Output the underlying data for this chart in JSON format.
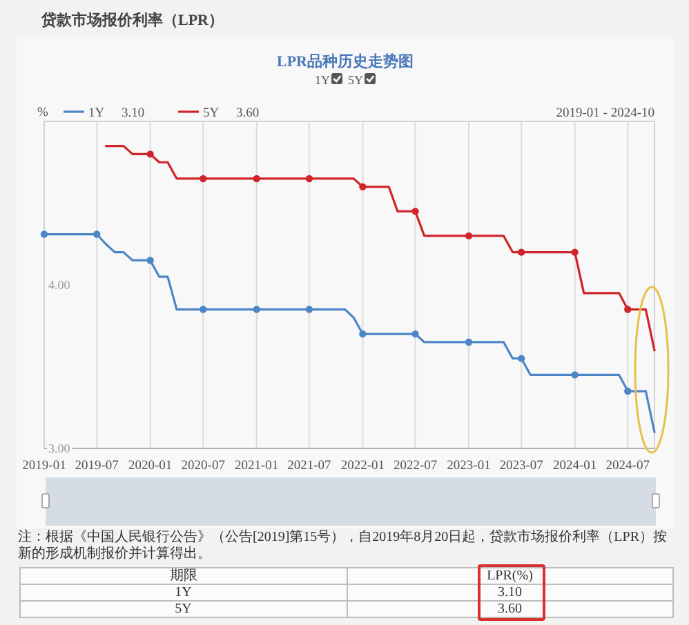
{
  "chart_data": {
    "type": "line",
    "title": "贷款市场报价利率（LPR）",
    "subtitle": "LPR品种历史走势图",
    "ylabel": "%",
    "x": [
      "2019-01",
      "2019-02",
      "2019-03",
      "2019-04",
      "2019-05",
      "2019-06",
      "2019-07",
      "2019-08",
      "2019-09",
      "2019-10",
      "2019-11",
      "2019-12",
      "2020-01",
      "2020-02",
      "2020-03",
      "2020-04",
      "2020-05",
      "2020-06",
      "2020-07",
      "2020-08",
      "2020-09",
      "2020-10",
      "2020-11",
      "2020-12",
      "2021-01",
      "2021-02",
      "2021-03",
      "2021-04",
      "2021-05",
      "2021-06",
      "2021-07",
      "2021-08",
      "2021-09",
      "2021-10",
      "2021-11",
      "2021-12",
      "2022-01",
      "2022-02",
      "2022-03",
      "2022-04",
      "2022-05",
      "2022-06",
      "2022-07",
      "2022-08",
      "2022-09",
      "2022-10",
      "2022-11",
      "2022-12",
      "2023-01",
      "2023-02",
      "2023-03",
      "2023-04",
      "2023-05",
      "2023-06",
      "2023-07",
      "2023-08",
      "2023-09",
      "2023-10",
      "2023-11",
      "2023-12",
      "2024-01",
      "2024-02",
      "2024-03",
      "2024-04",
      "2024-05",
      "2024-06",
      "2024-07",
      "2024-08",
      "2024-09",
      "2024-10"
    ],
    "series": [
      {
        "name": "1Y",
        "color": "#4d86c6",
        "values": [
          4.31,
          4.31,
          4.31,
          4.31,
          4.31,
          4.31,
          4.31,
          4.25,
          4.2,
          4.2,
          4.15,
          4.15,
          4.15,
          4.05,
          4.05,
          3.85,
          3.85,
          3.85,
          3.85,
          3.85,
          3.85,
          3.85,
          3.85,
          3.85,
          3.85,
          3.85,
          3.85,
          3.85,
          3.85,
          3.85,
          3.85,
          3.85,
          3.85,
          3.85,
          3.85,
          3.8,
          3.7,
          3.7,
          3.7,
          3.7,
          3.7,
          3.7,
          3.7,
          3.65,
          3.65,
          3.65,
          3.65,
          3.65,
          3.65,
          3.65,
          3.65,
          3.65,
          3.65,
          3.55,
          3.55,
          3.45,
          3.45,
          3.45,
          3.45,
          3.45,
          3.45,
          3.45,
          3.45,
          3.45,
          3.45,
          3.45,
          3.35,
          3.35,
          3.35,
          3.1
        ]
      },
      {
        "name": "5Y",
        "color": "#d0242b",
        "values": [
          null,
          null,
          null,
          null,
          null,
          null,
          null,
          4.85,
          4.85,
          4.85,
          4.8,
          4.8,
          4.8,
          4.75,
          4.75,
          4.65,
          4.65,
          4.65,
          4.65,
          4.65,
          4.65,
          4.65,
          4.65,
          4.65,
          4.65,
          4.65,
          4.65,
          4.65,
          4.65,
          4.65,
          4.65,
          4.65,
          4.65,
          4.65,
          4.65,
          4.65,
          4.6,
          4.6,
          4.6,
          4.6,
          4.45,
          4.45,
          4.45,
          4.3,
          4.3,
          4.3,
          4.3,
          4.3,
          4.3,
          4.3,
          4.3,
          4.3,
          4.3,
          4.2,
          4.2,
          4.2,
          4.2,
          4.2,
          4.2,
          4.2,
          4.2,
          3.95,
          3.95,
          3.95,
          3.95,
          3.95,
          3.85,
          3.85,
          3.85,
          3.6
        ]
      },
      {
        "type": "scatter",
        "marker": "circle",
        "color": "#4d86c6",
        "x": [
          "2019-01",
          "2019-07",
          "2020-01",
          "2020-07",
          "2021-01",
          "2021-07",
          "2022-01",
          "2022-07",
          "2023-01",
          "2023-07",
          "2024-01",
          "2024-07"
        ],
        "values": [
          4.31,
          4.31,
          4.15,
          3.85,
          3.85,
          3.85,
          3.7,
          3.7,
          3.65,
          3.55,
          3.45,
          3.35
        ]
      },
      {
        "type": "scatter",
        "marker": "circle",
        "color": "#d0242b",
        "x": [
          "2020-01",
          "2020-07",
          "2021-01",
          "2021-07",
          "2022-01",
          "2022-07",
          "2023-01",
          "2023-07",
          "2024-01",
          "2024-07"
        ],
        "values": [
          4.8,
          4.65,
          4.65,
          4.65,
          4.6,
          4.45,
          4.3,
          4.2,
          4.2,
          3.85
        ]
      }
    ],
    "xlim": [
      "2019-01",
      "2024-10"
    ],
    "xticks": [
      "2019-01",
      "2019-07",
      "2020-01",
      "2020-07",
      "2021-01",
      "2021-07",
      "2022-01",
      "2022-07",
      "2023-01",
      "2023-07",
      "2024-01",
      "2024-07"
    ],
    "ylim": [
      3,
      5
    ],
    "yticks": [
      {
        "value": 3,
        "label": "3.00"
      },
      {
        "value": 4,
        "label": "4.00"
      }
    ],
    "grid": "x",
    "legend": "top left",
    "line_style": "solid",
    "annotations": [
      "2019-01 - 2024-10",
      "3.10",
      "3.60",
      "注：根据《中国人民银行公告》（公告[2019]第15号），自2019年8月20日起，贷款市场报价利率（LPR）按新的形成机制报价并计算得出。",
      "期限",
      "LPR(%)",
      "1Y",
      "3.10",
      "5Y",
      "3.60"
    ]
  }
}
